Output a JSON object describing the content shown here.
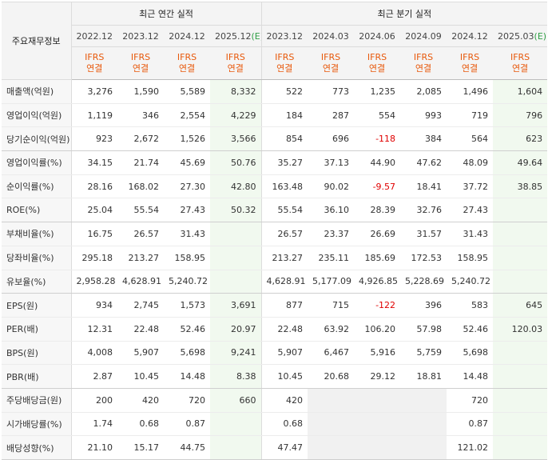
{
  "header": {
    "corner_label": "주요재무정보",
    "annual_group": "최근 연간 실적",
    "quarter_group": "최근 분기 실적",
    "annual_periods": [
      {
        "label": "2022.12",
        "estimate": false
      },
      {
        "label": "2023.12",
        "estimate": false
      },
      {
        "label": "2024.12",
        "estimate": false
      },
      {
        "label": "2025.12",
        "estimate_suffix": "(E)",
        "estimate": true
      }
    ],
    "quarter_periods": [
      {
        "label": "2023.12",
        "estimate": false
      },
      {
        "label": "2024.03",
        "estimate": false
      },
      {
        "label": "2024.06",
        "estimate": false
      },
      {
        "label": "2024.09",
        "estimate": false
      },
      {
        "label": "2024.12",
        "estimate": false
      },
      {
        "label": "2025.03",
        "estimate_suffix": "(E)",
        "estimate": true
      }
    ],
    "standard_line1": "IFRS",
    "standard_line2": "연결"
  },
  "rows": [
    {
      "label": "매출액(억원)",
      "annual": [
        "3,276",
        "1,590",
        "5,589",
        "8,332"
      ],
      "quarter": [
        "522",
        "773",
        "1,235",
        "2,085",
        "1,496",
        "1,604"
      ]
    },
    {
      "label": "영업이익(억원)",
      "annual": [
        "1,119",
        "346",
        "2,554",
        "4,229"
      ],
      "quarter": [
        "184",
        "287",
        "554",
        "993",
        "719",
        "796"
      ]
    },
    {
      "label": "당기순이익(억원)",
      "annual": [
        "923",
        "2,672",
        "1,526",
        "3,566"
      ],
      "quarter": [
        "854",
        "696",
        "-118",
        "384",
        "564",
        "623"
      ]
    },
    {
      "label": "영업이익률(%)",
      "annual": [
        "34.15",
        "21.74",
        "45.69",
        "50.76"
      ],
      "quarter": [
        "35.27",
        "37.13",
        "44.90",
        "47.62",
        "48.09",
        "49.64"
      ]
    },
    {
      "label": "순이익률(%)",
      "annual": [
        "28.16",
        "168.02",
        "27.30",
        "42.80"
      ],
      "quarter": [
        "163.48",
        "90.02",
        "-9.57",
        "18.41",
        "37.72",
        "38.85"
      ]
    },
    {
      "label": "ROE(%)",
      "annual": [
        "25.04",
        "55.54",
        "27.43",
        "50.32"
      ],
      "quarter": [
        "55.54",
        "36.10",
        "28.39",
        "32.76",
        "27.43",
        ""
      ]
    },
    {
      "label": "부채비율(%)",
      "annual": [
        "16.75",
        "26.57",
        "31.43",
        ""
      ],
      "quarter": [
        "26.57",
        "23.37",
        "26.69",
        "31.57",
        "31.43",
        ""
      ]
    },
    {
      "label": "당좌비율(%)",
      "annual": [
        "295.18",
        "213.27",
        "158.95",
        ""
      ],
      "quarter": [
        "213.27",
        "235.11",
        "185.69",
        "172.53",
        "158.95",
        ""
      ]
    },
    {
      "label": "유보율(%)",
      "annual": [
        "2,958.28",
        "4,628.91",
        "5,240.72",
        ""
      ],
      "quarter": [
        "4,628.91",
        "5,177.09",
        "4,926.85",
        "5,228.69",
        "5,240.72",
        ""
      ]
    },
    {
      "label": "EPS(원)",
      "annual": [
        "934",
        "2,745",
        "1,573",
        "3,691"
      ],
      "quarter": [
        "877",
        "715",
        "-122",
        "396",
        "583",
        "645"
      ]
    },
    {
      "label": "PER(배)",
      "annual": [
        "12.31",
        "22.48",
        "52.46",
        "20.97"
      ],
      "quarter": [
        "22.48",
        "63.92",
        "106.20",
        "57.98",
        "52.46",
        "120.03"
      ]
    },
    {
      "label": "BPS(원)",
      "annual": [
        "4,008",
        "5,907",
        "5,698",
        "9,241"
      ],
      "quarter": [
        "5,907",
        "6,467",
        "5,916",
        "5,759",
        "5,698",
        ""
      ]
    },
    {
      "label": "PBR(배)",
      "annual": [
        "2.87",
        "10.45",
        "14.48",
        "8.38"
      ],
      "quarter": [
        "10.45",
        "20.68",
        "29.12",
        "18.81",
        "14.48",
        ""
      ]
    },
    {
      "label": "주당배당금(원)",
      "annual": [
        "200",
        "420",
        "720",
        "660"
      ],
      "quarter": [
        "420",
        "",
        "",
        "",
        "720",
        ""
      ]
    },
    {
      "label": "시가배당률(%)",
      "annual": [
        "1.74",
        "0.68",
        "0.87",
        ""
      ],
      "quarter": [
        "0.68",
        "",
        "",
        "",
        "0.87",
        ""
      ]
    },
    {
      "label": "배당성향(%)",
      "annual": [
        "21.10",
        "15.17",
        "44.75",
        ""
      ],
      "quarter": [
        "47.47",
        "",
        "",
        "",
        "121.02",
        ""
      ]
    }
  ]
}
